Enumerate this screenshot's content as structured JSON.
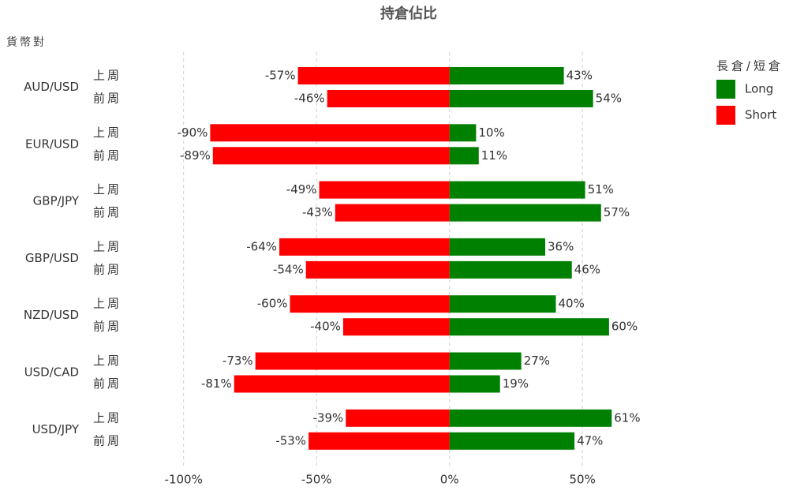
{
  "chart_data": {
    "type": "diverging-bar",
    "title": "持倉佔比",
    "y_axis_label": "貨幣對",
    "legend_title": "長倉/短倉",
    "legend_position": "right",
    "groups": [
      "AUD/USD",
      "EUR/USD",
      "GBP/JPY",
      "GBP/USD",
      "NZD/USD",
      "USD/CAD",
      "USD/JPY"
    ],
    "categories": [
      "上周",
      "前周",
      "上周",
      "前周",
      "上周",
      "前周",
      "上周",
      "前周",
      "上周",
      "前周",
      "上周",
      "前周",
      "上周",
      "前周"
    ],
    "series": [
      {
        "name": "Long",
        "color": "#008000",
        "values": [
          43,
          54,
          10,
          11,
          51,
          57,
          36,
          46,
          40,
          60,
          27,
          19,
          61,
          47
        ],
        "value_labels": [
          "43%",
          "54%",
          "10%",
          "11%",
          "51%",
          "57%",
          "36%",
          "46%",
          "40%",
          "60%",
          "27%",
          "19%",
          "61%",
          "47%"
        ]
      },
      {
        "name": "Short",
        "color": "#ff0000",
        "values": [
          -57,
          -46,
          -90,
          -89,
          -49,
          -43,
          -64,
          -54,
          -60,
          -40,
          -73,
          -81,
          -39,
          -53
        ],
        "value_labels": [
          "-57%",
          "-46%",
          "-90%",
          "-89%",
          "-49%",
          "-43%",
          "-64%",
          "-54%",
          "-60%",
          "-40%",
          "-73%",
          "-81%",
          "-39%",
          "-53%"
        ]
      }
    ],
    "xlim": [
      -110,
      90
    ],
    "xticks": [
      {
        "value": -100,
        "label": "-100%"
      },
      {
        "value": -50,
        "label": "-50%"
      },
      {
        "value": 0,
        "label": "0%"
      },
      {
        "value": 50,
        "label": "50%"
      }
    ],
    "grid": true
  }
}
